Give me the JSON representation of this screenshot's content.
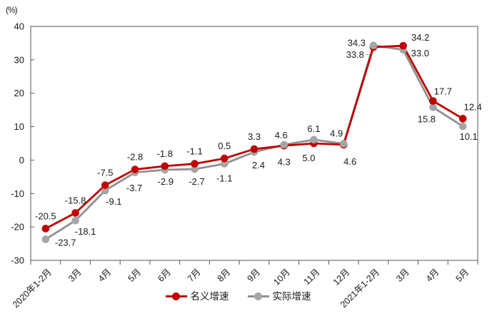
{
  "chart_data": {
    "type": "line",
    "title": "",
    "xlabel": "",
    "ylabel": "(%)",
    "categories": [
      "2020年1-2月",
      "3月",
      "4月",
      "5月",
      "6月",
      "7月",
      "8月",
      "9月",
      "10月",
      "11月",
      "12月",
      "2021年1-2月",
      "3月",
      "4月",
      "5月"
    ],
    "series": [
      {
        "name": "名义增速",
        "line_color": "#C00000",
        "marker_color": "#C00000",
        "values": [
          -20.5,
          -15.8,
          -7.5,
          -2.8,
          -1.8,
          -1.1,
          0.5,
          3.3,
          4.3,
          5.0,
          4.6,
          33.8,
          34.2,
          17.7,
          12.4
        ]
      },
      {
        "name": "实际增速",
        "line_color": "#909090",
        "marker_color": "#A5A5A5",
        "values": [
          -23.7,
          -18.1,
          -9.1,
          -3.7,
          -2.9,
          -2.7,
          -1.1,
          2.4,
          4.6,
          6.1,
          4.9,
          34.3,
          33.0,
          15.8,
          10.1
        ]
      }
    ],
    "ylim": [
      -30,
      40
    ],
    "yticks": [
      40,
      30,
      20,
      10,
      0,
      -10,
      -20,
      -30
    ],
    "grid": "off",
    "legend_position": "bottom",
    "data_labels": "on"
  }
}
